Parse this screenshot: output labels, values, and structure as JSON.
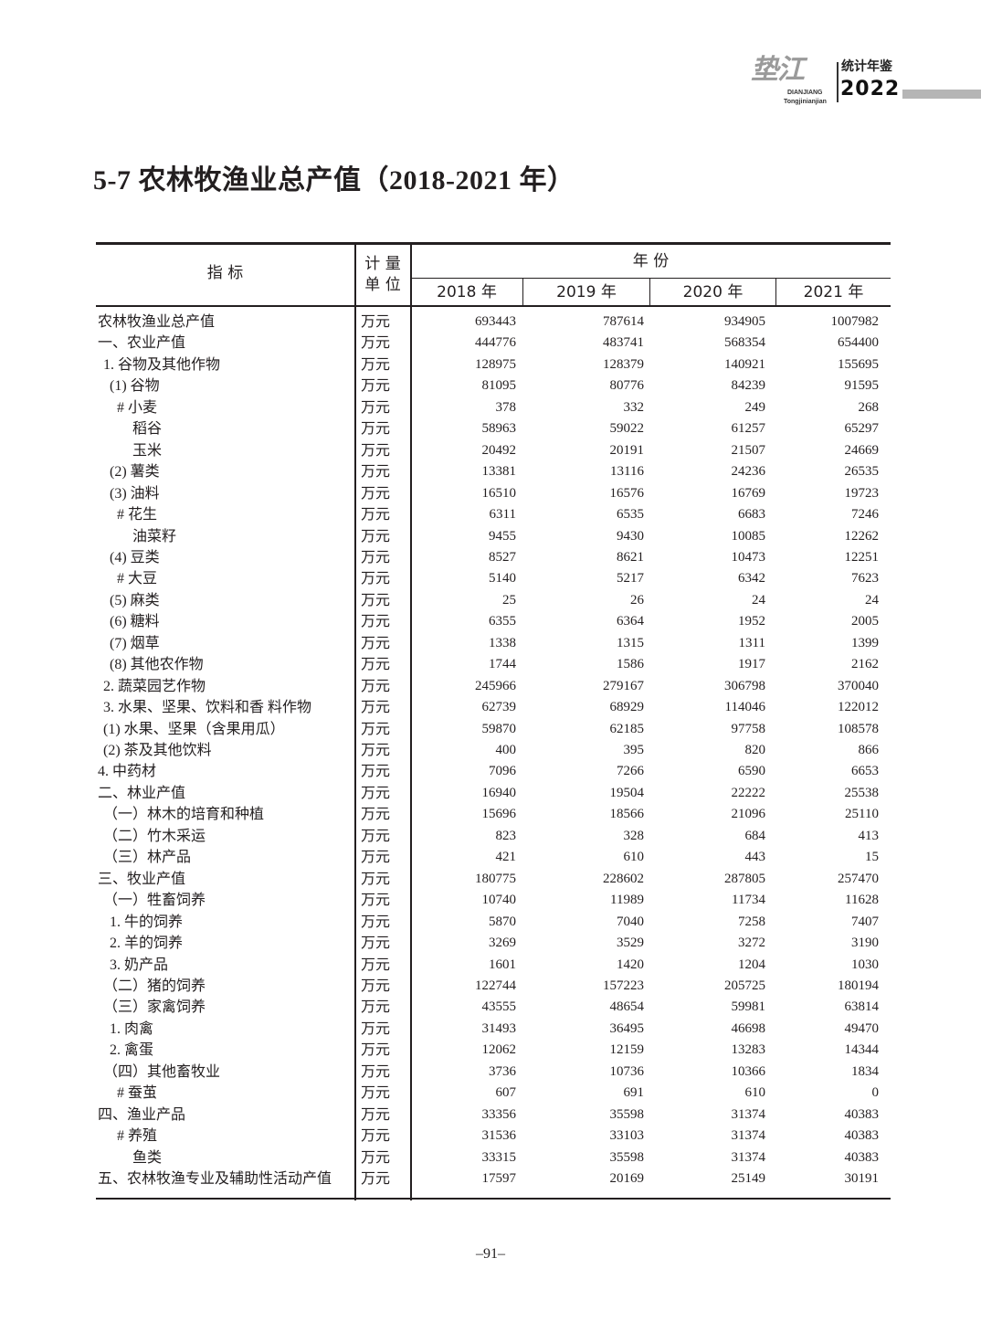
{
  "header": {
    "logo_calligraphy": "垫江",
    "logo_pinyin_1": "DIANJIANG",
    "logo_pinyin_2": "Tongjinianjian",
    "logo_cn": "统计年鉴",
    "logo_year": "2022"
  },
  "title": "5-7  农林牧渔业总产值（2018-2021 年）",
  "table": {
    "col_indicator": "指 标",
    "col_unit_1": "计 量",
    "col_unit_2": "单 位",
    "col_year_group": "年 份",
    "years": [
      "2018 年",
      "2019 年",
      "2020 年",
      "2021 年"
    ],
    "rows": [
      {
        "label": "农林牧渔业总产值",
        "level": 0,
        "unit": "万元",
        "values": [
          "693443",
          "787614",
          "934905",
          "1007982"
        ]
      },
      {
        "label": "一、农业产值",
        "level": 0,
        "unit": "万元",
        "values": [
          "444776",
          "483741",
          "568354",
          "654400"
        ]
      },
      {
        "label": "1. 谷物及其他作物",
        "level": 1,
        "unit": "万元",
        "values": [
          "128975",
          "128379",
          "140921",
          "155695"
        ]
      },
      {
        "label": "(1) 谷物",
        "level": 2,
        "unit": "万元",
        "values": [
          "81095",
          "80776",
          "84239",
          "91595"
        ]
      },
      {
        "label": "# 小麦",
        "level": 3,
        "unit": "万元",
        "values": [
          "378",
          "332",
          "249",
          "268"
        ]
      },
      {
        "label": "稻谷",
        "level": 4,
        "unit": "万元",
        "values": [
          "58963",
          "59022",
          "61257",
          "65297"
        ]
      },
      {
        "label": "玉米",
        "level": 4,
        "unit": "万元",
        "values": [
          "20492",
          "20191",
          "21507",
          "24669"
        ]
      },
      {
        "label": "(2) 薯类",
        "level": 2,
        "unit": "万元",
        "values": [
          "13381",
          "13116",
          "24236",
          "26535"
        ]
      },
      {
        "label": "(3) 油料",
        "level": 2,
        "unit": "万元",
        "values": [
          "16510",
          "16576",
          "16769",
          "19723"
        ]
      },
      {
        "label": "# 花生",
        "level": 3,
        "unit": "万元",
        "values": [
          "6311",
          "6535",
          "6683",
          "7246"
        ]
      },
      {
        "label": "油菜籽",
        "level": 4,
        "unit": "万元",
        "values": [
          "9455",
          "9430",
          "10085",
          "12262"
        ]
      },
      {
        "label": "(4) 豆类",
        "level": 2,
        "unit": "万元",
        "values": [
          "8527",
          "8621",
          "10473",
          "12251"
        ]
      },
      {
        "label": "# 大豆",
        "level": 3,
        "unit": "万元",
        "values": [
          "5140",
          "5217",
          "6342",
          "7623"
        ]
      },
      {
        "label": "(5) 麻类",
        "level": 2,
        "unit": "万元",
        "values": [
          "25",
          "26",
          "24",
          "24"
        ]
      },
      {
        "label": "(6) 糖料",
        "level": 2,
        "unit": "万元",
        "values": [
          "6355",
          "6364",
          "1952",
          "2005"
        ]
      },
      {
        "label": "(7) 烟草",
        "level": 2,
        "unit": "万元",
        "values": [
          "1338",
          "1315",
          "1311",
          "1399"
        ]
      },
      {
        "label": "(8) 其他农作物",
        "level": 2,
        "unit": "万元",
        "values": [
          "1744",
          "1586",
          "1917",
          "2162"
        ]
      },
      {
        "label": "2. 蔬菜园艺作物",
        "level": 1,
        "unit": "万元",
        "values": [
          "245966",
          "279167",
          "306798",
          "370040"
        ]
      },
      {
        "label": "3. 水果、坚果、饮料和香 料作物",
        "level": 1,
        "unit": "万元",
        "values": [
          "62739",
          "68929",
          "114046",
          "122012"
        ]
      },
      {
        "label": "(1) 水果、坚果（含果用瓜）",
        "level": 1,
        "unit": "万元",
        "values": [
          "59870",
          "62185",
          "97758",
          "108578"
        ]
      },
      {
        "label": "(2) 茶及其他饮料",
        "level": 1,
        "unit": "万元",
        "values": [
          "400",
          "395",
          "820",
          "866"
        ]
      },
      {
        "label": "4. 中药材",
        "level": 0,
        "unit": "万元",
        "values": [
          "7096",
          "7266",
          "6590",
          "6653"
        ]
      },
      {
        "label": "二、林业产值",
        "level": 0,
        "unit": "万元",
        "values": [
          "16940",
          "19504",
          "22222",
          "25538"
        ]
      },
      {
        "label": "（一）林木的培育和种植",
        "level": 1,
        "unit": "万元",
        "values": [
          "15696",
          "18566",
          "21096",
          "25110"
        ]
      },
      {
        "label": "（二）竹木采运",
        "level": 1,
        "unit": "万元",
        "values": [
          "823",
          "328",
          "684",
          "413"
        ]
      },
      {
        "label": "（三）林产品",
        "level": 1,
        "unit": "万元",
        "values": [
          "421",
          "610",
          "443",
          "15"
        ]
      },
      {
        "label": "三、牧业产值",
        "level": 0,
        "unit": "万元",
        "values": [
          "180775",
          "228602",
          "287805",
          "257470"
        ]
      },
      {
        "label": "（一）牲畜饲养",
        "level": 1,
        "unit": "万元",
        "values": [
          "10740",
          "11989",
          "11734",
          "11628"
        ]
      },
      {
        "label": "1. 牛的饲养",
        "level": 2,
        "unit": "万元",
        "values": [
          "5870",
          "7040",
          "7258",
          "7407"
        ]
      },
      {
        "label": "2. 羊的饲养",
        "level": 2,
        "unit": "万元",
        "values": [
          "3269",
          "3529",
          "3272",
          "3190"
        ]
      },
      {
        "label": "3. 奶产品",
        "level": 2,
        "unit": "万元",
        "values": [
          "1601",
          "1420",
          "1204",
          "1030"
        ]
      },
      {
        "label": "（二）猪的饲养",
        "level": 1,
        "unit": "万元",
        "values": [
          "122744",
          "157223",
          "205725",
          "180194"
        ]
      },
      {
        "label": "（三）家禽饲养",
        "level": 1,
        "unit": "万元",
        "values": [
          "43555",
          "48654",
          "59981",
          "63814"
        ]
      },
      {
        "label": "1. 肉禽",
        "level": 2,
        "unit": "万元",
        "values": [
          "31493",
          "36495",
          "46698",
          "49470"
        ]
      },
      {
        "label": "2. 禽蛋",
        "level": 2,
        "unit": "万元",
        "values": [
          "12062",
          "12159",
          "13283",
          "14344"
        ]
      },
      {
        "label": "（四）其他畜牧业",
        "level": 1,
        "unit": "万元",
        "values": [
          "3736",
          "10736",
          "10366",
          "1834"
        ]
      },
      {
        "label": "# 蚕茧",
        "level": 3,
        "unit": "万元",
        "values": [
          "607",
          "691",
          "610",
          "0"
        ]
      },
      {
        "label": "四、渔业产品",
        "level": 0,
        "unit": "万元",
        "values": [
          "33356",
          "35598",
          "31374",
          "40383"
        ]
      },
      {
        "label": "# 养殖",
        "level": 3,
        "unit": "万元",
        "values": [
          "31536",
          "33103",
          "31374",
          "40383"
        ]
      },
      {
        "label": "鱼类",
        "level": 4,
        "unit": "万元",
        "values": [
          "33315",
          "35598",
          "31374",
          "40383"
        ]
      },
      {
        "label": "五、农林牧渔专业及辅助性活动产值",
        "level": 0,
        "unit": "万元",
        "values": [
          "17597",
          "20169",
          "25149",
          "30191"
        ]
      }
    ]
  },
  "page_number": "–91–"
}
